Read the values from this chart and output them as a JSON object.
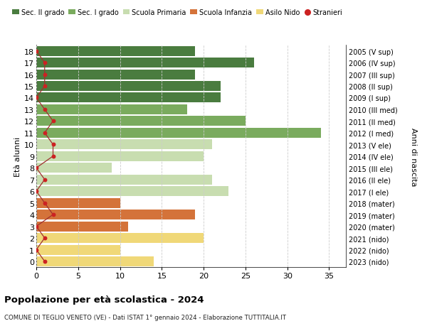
{
  "ages": [
    18,
    17,
    16,
    15,
    14,
    13,
    12,
    11,
    10,
    9,
    8,
    7,
    6,
    5,
    4,
    3,
    2,
    1,
    0
  ],
  "years": [
    "2005 (V sup)",
    "2006 (IV sup)",
    "2007 (III sup)",
    "2008 (II sup)",
    "2009 (I sup)",
    "2010 (III med)",
    "2011 (II med)",
    "2012 (I med)",
    "2013 (V ele)",
    "2014 (IV ele)",
    "2015 (III ele)",
    "2016 (II ele)",
    "2017 (I ele)",
    "2018 (mater)",
    "2019 (mater)",
    "2020 (mater)",
    "2021 (nido)",
    "2022 (nido)",
    "2023 (nido)"
  ],
  "bar_values": [
    19,
    26,
    19,
    22,
    22,
    18,
    25,
    34,
    21,
    20,
    9,
    21,
    23,
    10,
    19,
    11,
    20,
    10,
    14
  ],
  "stranieri": [
    0,
    1,
    1,
    1,
    0,
    1,
    2,
    1,
    2,
    2,
    0,
    1,
    0,
    1,
    2,
    0,
    1,
    0,
    1
  ],
  "bar_colors": [
    "#4a7c3f",
    "#4a7c3f",
    "#4a7c3f",
    "#4a7c3f",
    "#4a7c3f",
    "#7aab5e",
    "#7aab5e",
    "#7aab5e",
    "#c8ddb0",
    "#c8ddb0",
    "#c8ddb0",
    "#c8ddb0",
    "#c8ddb0",
    "#d4733a",
    "#d4733a",
    "#d4733a",
    "#f0d878",
    "#f0d878",
    "#f0d878"
  ],
  "legend_labels": [
    "Sec. II grado",
    "Sec. I grado",
    "Scuola Primaria",
    "Scuola Infanzia",
    "Asilo Nido",
    "Stranieri"
  ],
  "legend_colors": [
    "#4a7c3f",
    "#7aab5e",
    "#c8ddb0",
    "#d4733a",
    "#f0d878",
    "#cc2222"
  ],
  "title": "Popolazione per età scolastica - 2024",
  "subtitle": "COMUNE DI TEGLIO VENETO (VE) - Dati ISTAT 1° gennaio 2024 - Elaborazione TUTTITALIA.IT",
  "ylabel_left": "Età alunni",
  "ylabel_right": "Anni di nascita",
  "xlim": [
    0,
    37
  ],
  "xticks": [
    0,
    5,
    10,
    15,
    20,
    25,
    30,
    35
  ],
  "stranieri_dot_color": "#cc2222",
  "stranieri_line_color": "#a03030",
  "bg_color": "#ffffff",
  "grid_color": "#cccccc",
  "bar_height": 0.85
}
